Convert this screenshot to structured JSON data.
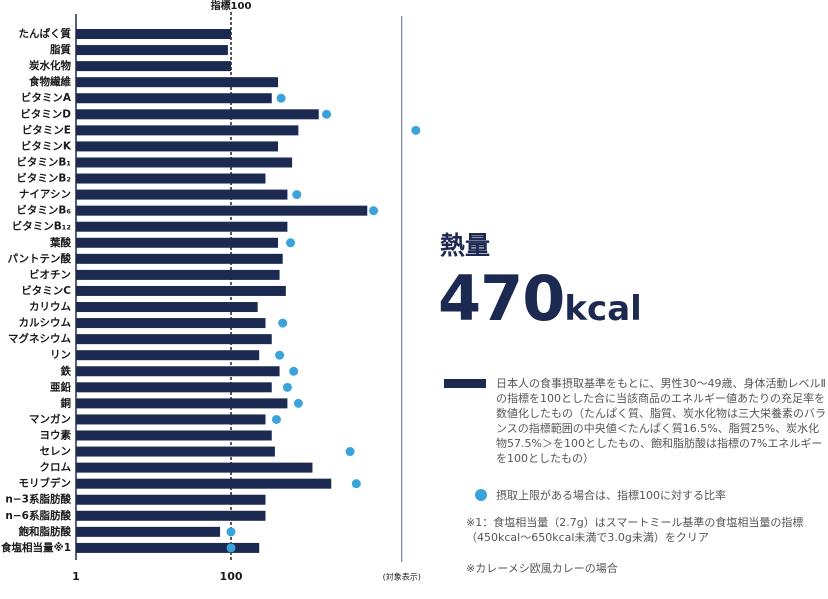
{
  "chart_data": {
    "type": "bar",
    "orientation": "horizontal",
    "top_label": "指標100",
    "categories": [
      "たんぱく質",
      "脂質",
      "炭水化物",
      "食物繊維",
      "ビタミンA",
      "ビタミンD",
      "ビタミンE",
      "ビタミンK",
      "ビタミンB₁",
      "ビタミンB₂",
      "ナイアシン",
      "ビタミンB₆",
      "ビタミンB₁₂",
      "葉酸",
      "パントテン酸",
      "ビオチン",
      "ビタミンC",
      "カリウム",
      "カルシウム",
      "マグネシウム",
      "リン",
      "鉄",
      "亜鉛",
      "銅",
      "マンガン",
      "ヨウ素",
      "セレン",
      "クロム",
      "モリブデン",
      "n−3系脂肪酸",
      "n−6系脂肪酸",
      "飽和脂肪酸",
      "食塩相当量※1"
    ],
    "series": [
      {
        "name": "日本人の食事摂取基準をもとに、男性30～49歳、身体活動レベルⅡの指標を100とした合に当該商品のエネルギー値あたりの充足率を数値化したもの（たんぱく質、脂質、炭水化物は三大栄養素のバランスの指標範囲の中央値＜たんぱく質16.5%、脂質25%、炭水化物57.5%＞を100としたもの、飽和脂肪酸は指標の7%エネルギーを100としたもの）",
        "color": "#1c2a52",
        "mark": "bar",
        "values": [
          100,
          98,
          100,
          130,
          126,
          156,
          143,
          130,
          139,
          122,
          136,
          187,
          136,
          130,
          133,
          131,
          135,
          117,
          122,
          126,
          118,
          131,
          126,
          136,
          122,
          126,
          128,
          152,
          164,
          122,
          122,
          93,
          118
        ]
      },
      {
        "name": "摂取上限がある場合は、指標100に対する比率",
        "color": "#3ba3dc",
        "mark": "dot",
        "values": [
          null,
          null,
          null,
          null,
          132,
          161,
          218,
          null,
          null,
          null,
          142,
          191,
          null,
          138,
          null,
          null,
          null,
          null,
          133,
          null,
          131,
          140,
          136,
          143,
          129,
          null,
          176,
          null,
          180,
          null,
          null,
          100,
          100
        ]
      }
    ],
    "xlim": [
      1,
      230
    ],
    "xticks": [
      1,
      100,
      {
        "value": 209,
        "label": "(対象表示)"
      }
    ],
    "energy_label": "熱量",
    "energy_value": "470",
    "energy_unit": "kcal",
    "notes": [
      "※1：食塩相当量（2.7g）はスマートミール基準の食塩相当量の指標（450kcal～650kcal未満で3.0g未満）をクリア",
      "※カレーメシ欧風カレーの場合"
    ]
  }
}
